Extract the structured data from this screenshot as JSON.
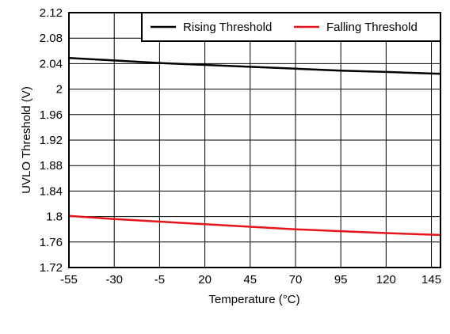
{
  "chart_data": {
    "type": "line",
    "title": "",
    "xlabel": "Temperature (°C)",
    "ylabel": "UVLO Threshold (V)",
    "xlim": [
      -55,
      150
    ],
    "ylim": [
      1.72,
      2.12
    ],
    "xticks": [
      -55,
      -30,
      -5,
      20,
      45,
      70,
      95,
      120,
      145
    ],
    "xtick_labels": [
      "-55",
      "-30",
      "-5",
      "20",
      "45",
      "70",
      "95",
      "120",
      "145"
    ],
    "yticks": [
      1.72,
      1.76,
      1.8,
      1.84,
      1.88,
      1.92,
      1.96,
      2,
      2.04,
      2.08,
      2.12
    ],
    "ytick_labels": [
      "1.72",
      "1.76",
      "1.8",
      "1.84",
      "1.88",
      "1.92",
      "1.96",
      "2",
      "2.04",
      "2.08",
      "2.12"
    ],
    "grid": true,
    "legend_position": "top-right",
    "x": [
      -55,
      -30,
      -5,
      20,
      45,
      70,
      95,
      120,
      150
    ],
    "series": [
      {
        "name": "Rising Threshold",
        "color": "#000000",
        "values": [
          2.049,
          2.045,
          2.041,
          2.038,
          2.035,
          2.032,
          2.029,
          2.027,
          2.024
        ]
      },
      {
        "name": "Falling Threshold",
        "color": "#e8141b",
        "values": [
          1.801,
          1.796,
          1.792,
          1.788,
          1.784,
          1.78,
          1.777,
          1.774,
          1.771
        ]
      }
    ]
  }
}
